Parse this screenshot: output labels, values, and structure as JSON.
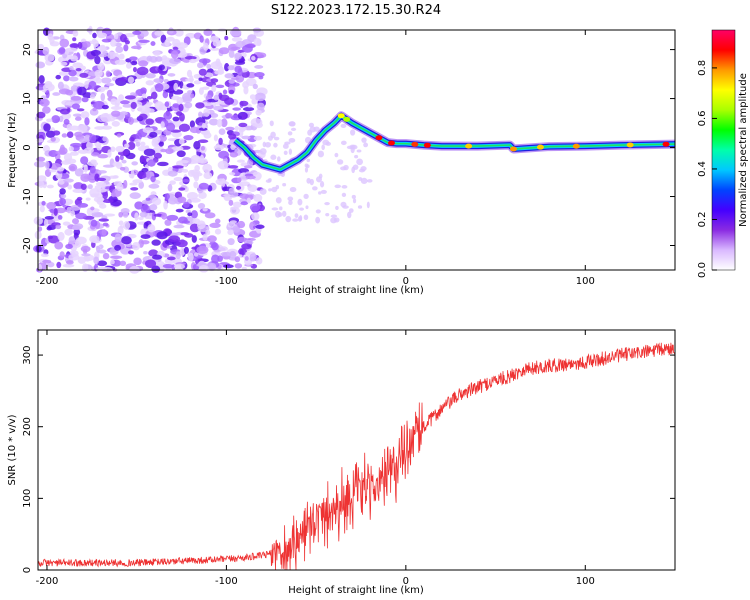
{
  "title": "S122.2023.172.15.30.R24",
  "chart_data": [
    {
      "type": "heatmap",
      "xlabel": "Height of straight line (km)",
      "ylabel": "Frequency (Hz)",
      "xlim": [
        -205,
        150
      ],
      "ylim": [
        -25,
        24
      ],
      "x_ticks": [
        -200,
        -100,
        0,
        100
      ],
      "y_ticks": [
        -20,
        -10,
        0,
        10,
        20
      ],
      "grid": false,
      "colorbar": {
        "label": "Normalized spectral amplitude",
        "range": [
          0,
          0.95
        ],
        "ticks": [
          0.0,
          0.2,
          0.4,
          0.6,
          0.8
        ],
        "colors": [
          "#ffffff",
          "#d9b8ff",
          "#8a2be2",
          "#4400ff",
          "#0044ff",
          "#00c8ff",
          "#00ffaa",
          "#00ff00",
          "#aaff00",
          "#ffff00",
          "#ff9900",
          "#ff0000",
          "#ff0066"
        ]
      },
      "ridge": {
        "x": [
          -95,
          -90,
          -85,
          -80,
          -75,
          -70,
          -65,
          -60,
          -55,
          -50,
          -45,
          -40,
          -36,
          -30,
          -25,
          -20,
          -15,
          -10,
          -5,
          0,
          10,
          20,
          40,
          58,
          60,
          80,
          100,
          120,
          150
        ],
        "y": [
          1.5,
          0,
          -2,
          -3.5,
          -4,
          -4.5,
          -3.5,
          -2.5,
          -1,
          1.5,
          3.5,
          5,
          6.5,
          5,
          4,
          3,
          2,
          1,
          0.8,
          0.8,
          0.5,
          0.3,
          0.3,
          0.5,
          -0.3,
          0.2,
          0.3,
          0.5,
          0.7
        ]
      }
    },
    {
      "type": "line",
      "xlabel": "Height of straight line (km)",
      "ylabel": "SNR (10 * v/v)",
      "xlim": [
        -205,
        150
      ],
      "ylim": [
        0,
        335
      ],
      "x_ticks": [
        -200,
        -100,
        0,
        100
      ],
      "y_ticks": [
        0,
        100,
        200,
        300
      ],
      "grid": false,
      "series": [
        {
          "color": "#ee3333",
          "trend_x": [
            -205,
            -150,
            -100,
            -80,
            -65,
            -55,
            -45,
            -35,
            -25,
            -15,
            -5,
            0,
            5,
            10,
            20,
            30,
            40,
            50,
            58,
            65,
            80,
            100,
            120,
            150
          ],
          "trend_y": [
            10,
            10,
            15,
            20,
            30,
            60,
            80,
            95,
            110,
            120,
            140,
            165,
            185,
            200,
            225,
            245,
            255,
            265,
            270,
            280,
            285,
            290,
            300,
            310
          ]
        }
      ]
    }
  ]
}
